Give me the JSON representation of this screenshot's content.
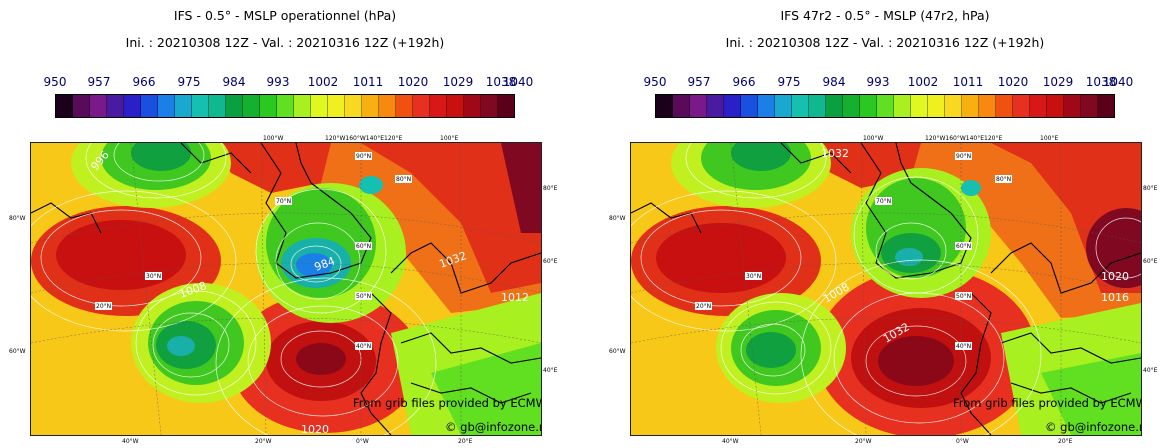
{
  "panels": [
    {
      "title_line1": "IFS - 0.5° - MSLP operationnel (hPa)",
      "title_line2": "Ini. : 20210308 12Z - Val. : 20210316 12Z (+192h)"
    },
    {
      "title_line1": "IFS 47r2 - 0.5° - MSLP (47r2, hPa)",
      "title_line2": "Ini. : 20210308 12Z - Val. : 20210316 12Z (+192h)"
    }
  ],
  "scale_labels": [
    "950",
    "957",
    "966",
    "975",
    "984",
    "993",
    "1002",
    "1011",
    "1020",
    "1029",
    "1038",
    "1040"
  ],
  "colorbar_colors": [
    "#1a001a",
    "#5a0a5a",
    "#7a1a8a",
    "#4a1aa0",
    "#2a20c8",
    "#1a50e0",
    "#1a80e8",
    "#18a8d0",
    "#16c0b0",
    "#10b890",
    "#0aa040",
    "#14b030",
    "#2ac820",
    "#60e020",
    "#a8f020",
    "#e0f820",
    "#f0f020",
    "#f8d820",
    "#f8b010",
    "#f88810",
    "#f05010",
    "#e83020",
    "#d81818",
    "#c81010",
    "#a00818",
    "#800820",
    "#5a0018"
  ],
  "map_ticks_top": [
    "100°W",
    "120°W160°W140°E120°E",
    "100°E"
  ],
  "map_ticks_bottom": [
    "40°W",
    "20°W",
    "0°W",
    "20°E"
  ],
  "map_ticks_left": [
    "80°W",
    "60°W"
  ],
  "map_ticks_right": [
    "80°E",
    "60°E",
    "40°E"
  ],
  "lat_labels": [
    "90°N",
    "80°N",
    "70°N",
    "60°N",
    "50°N",
    "40°N",
    "30°N",
    "20°N"
  ],
  "isobar_labels_left": [
    "996",
    "1020",
    "984",
    "1008",
    "1032",
    "1012"
  ],
  "isobar_labels_right": [
    "1032",
    "1008",
    "1032",
    "1020",
    "1016"
  ],
  "credit_source": "From grib files provided by ECMWF",
  "credit_site": "© gb@infozone.net"
}
